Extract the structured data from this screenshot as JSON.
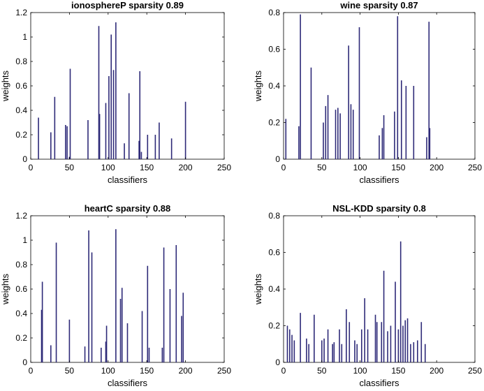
{
  "chart_data": [
    {
      "type": "bar",
      "title": "ionosphereP sparsity 0.89",
      "xlabel": "classifiers",
      "ylabel": "weights",
      "xlim": [
        0,
        250
      ],
      "ylim": [
        0,
        1.2
      ],
      "xticks": [
        "0",
        "50",
        "100",
        "150",
        "200",
        "250"
      ],
      "yticks": [
        "0",
        "0.2",
        "0.4",
        "0.6",
        "0.8",
        "1",
        "1.2"
      ],
      "bar_color": "#2e2a78",
      "x": [
        10,
        26,
        31,
        45,
        47,
        50,
        51,
        74,
        88,
        89,
        97,
        101,
        104,
        107,
        110,
        121,
        127,
        140,
        141,
        143,
        151,
        161,
        166,
        182,
        200
      ],
      "values": [
        0.34,
        0.22,
        0.51,
        0.28,
        0.27,
        0.02,
        0.74,
        0.32,
        1.09,
        0.37,
        0.46,
        0.68,
        1.02,
        0.73,
        1.12,
        0.13,
        0.54,
        0.15,
        0.72,
        0.06,
        0.2,
        0.2,
        0.3,
        0.17,
        0.47
      ]
    },
    {
      "type": "bar",
      "title": "wine sparsity 0.87",
      "xlabel": "classifiers",
      "ylabel": "weights",
      "xlim": [
        0,
        250
      ],
      "ylim": [
        0,
        0.8
      ],
      "xticks": [
        "0",
        "50",
        "100",
        "150",
        "200",
        "250"
      ],
      "yticks": [
        "0",
        "0.2",
        "0.4",
        "0.6",
        "0.8"
      ],
      "bar_color": "#2e2a78",
      "x": [
        3,
        20,
        22,
        36,
        52,
        55,
        58,
        68,
        71,
        74,
        85,
        88,
        91,
        99,
        125,
        129,
        131,
        145,
        149,
        154,
        160,
        170,
        187,
        190,
        191
      ],
      "values": [
        0.22,
        0.18,
        0.79,
        0.5,
        0.2,
        0.29,
        0.35,
        0.27,
        0.28,
        0.25,
        0.62,
        0.3,
        0.27,
        0.72,
        0.13,
        0.17,
        0.24,
        0.26,
        0.78,
        0.43,
        0.4,
        0.4,
        0.12,
        0.75,
        0.17
      ]
    },
    {
      "type": "bar",
      "title": "heartC sparsity 0.88",
      "xlabel": "classifiers",
      "ylabel": "weights",
      "xlim": [
        0,
        250
      ],
      "ylim": [
        0,
        1.2
      ],
      "xticks": [
        "0",
        "50",
        "100",
        "150",
        "200",
        "250"
      ],
      "yticks": [
        "0",
        "0.2",
        "0.4",
        "0.6",
        "0.8",
        "1",
        "1.2"
      ],
      "bar_color": "#2e2a78",
      "x": [
        14,
        15,
        26,
        33,
        50,
        70,
        75,
        79,
        91,
        97,
        98,
        110,
        116,
        118,
        125,
        144,
        151,
        153,
        170,
        172,
        180,
        188,
        195,
        197
      ],
      "values": [
        0.43,
        0.66,
        0.14,
        0.98,
        0.35,
        0.13,
        1.08,
        0.9,
        0.12,
        0.17,
        0.3,
        1.09,
        0.52,
        0.61,
        0.32,
        0.42,
        0.79,
        0.12,
        0.12,
        0.94,
        0.6,
        0.96,
        0.38,
        0.57
      ]
    },
    {
      "type": "bar",
      "title": "NSL-KDD sparsity 0.8",
      "xlabel": "classifiers",
      "ylabel": "weights",
      "xlim": [
        0,
        250
      ],
      "ylim": [
        0,
        0.8
      ],
      "xticks": [
        "0",
        "50",
        "100",
        "150",
        "200",
        "250"
      ],
      "yticks": [
        "0",
        "0.2",
        "0.4",
        "0.6",
        "0.8"
      ],
      "bar_color": "#2e2a78",
      "x": [
        5,
        8,
        11,
        14,
        22,
        30,
        33,
        40,
        50,
        53,
        58,
        64,
        66,
        73,
        76,
        82,
        86,
        93,
        96,
        102,
        106,
        110,
        120,
        122,
        128,
        131,
        136,
        140,
        146,
        150,
        153,
        156,
        159,
        162,
        166,
        170,
        175,
        180,
        185
      ],
      "values": [
        0.2,
        0.18,
        0.15,
        0.12,
        0.27,
        0.13,
        0.1,
        0.26,
        0.12,
        0.13,
        0.18,
        0.1,
        0.11,
        0.18,
        0.1,
        0.29,
        0.22,
        0.12,
        0.1,
        0.18,
        0.35,
        0.18,
        0.26,
        0.22,
        0.22,
        0.5,
        0.17,
        0.2,
        0.44,
        0.18,
        0.66,
        0.2,
        0.23,
        0.24,
        0.1,
        0.11,
        0.12,
        0.22,
        0.1
      ]
    }
  ]
}
